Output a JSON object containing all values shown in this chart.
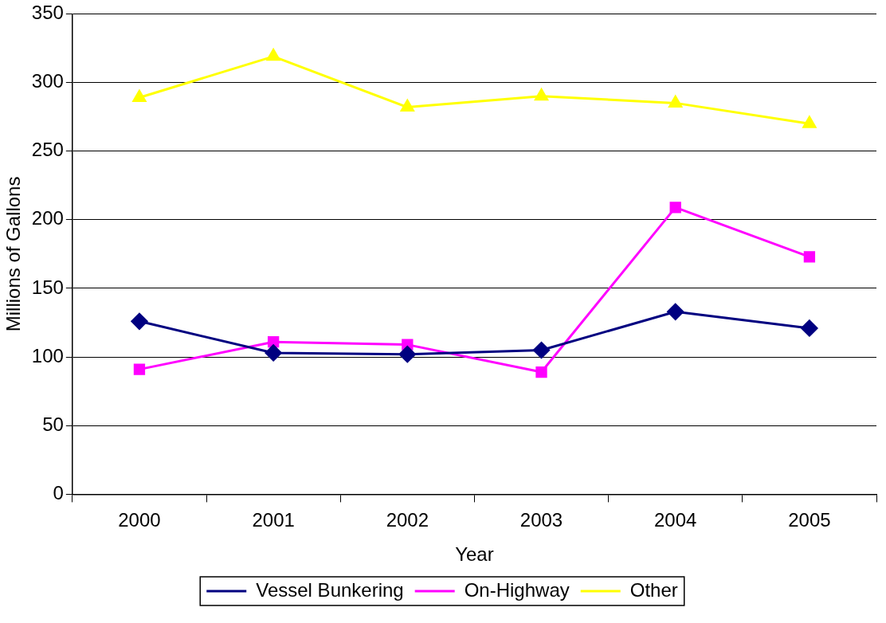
{
  "chart_data": {
    "type": "line",
    "xlabel": "Year",
    "ylabel": "Millions of Gallons",
    "categories": [
      "2000",
      "2001",
      "2002",
      "2003",
      "2004",
      "2005"
    ],
    "series": [
      {
        "name": "Vessel Bunkering",
        "color": "#000080",
        "marker": "diamond",
        "values": [
          126,
          103,
          102,
          105,
          133,
          121
        ]
      },
      {
        "name": "On-Highway",
        "color": "#ff00ff",
        "marker": "square",
        "values": [
          91,
          111,
          109,
          89,
          209,
          173
        ]
      },
      {
        "name": "Other",
        "color": "#ffff00",
        "marker": "triangle",
        "values": [
          289,
          319,
          282,
          290,
          285,
          270
        ]
      }
    ],
    "ylim": [
      0,
      350
    ],
    "yticks": [
      0,
      50,
      100,
      150,
      200,
      250,
      300,
      350
    ],
    "grid": "y",
    "legend": "bottom"
  }
}
